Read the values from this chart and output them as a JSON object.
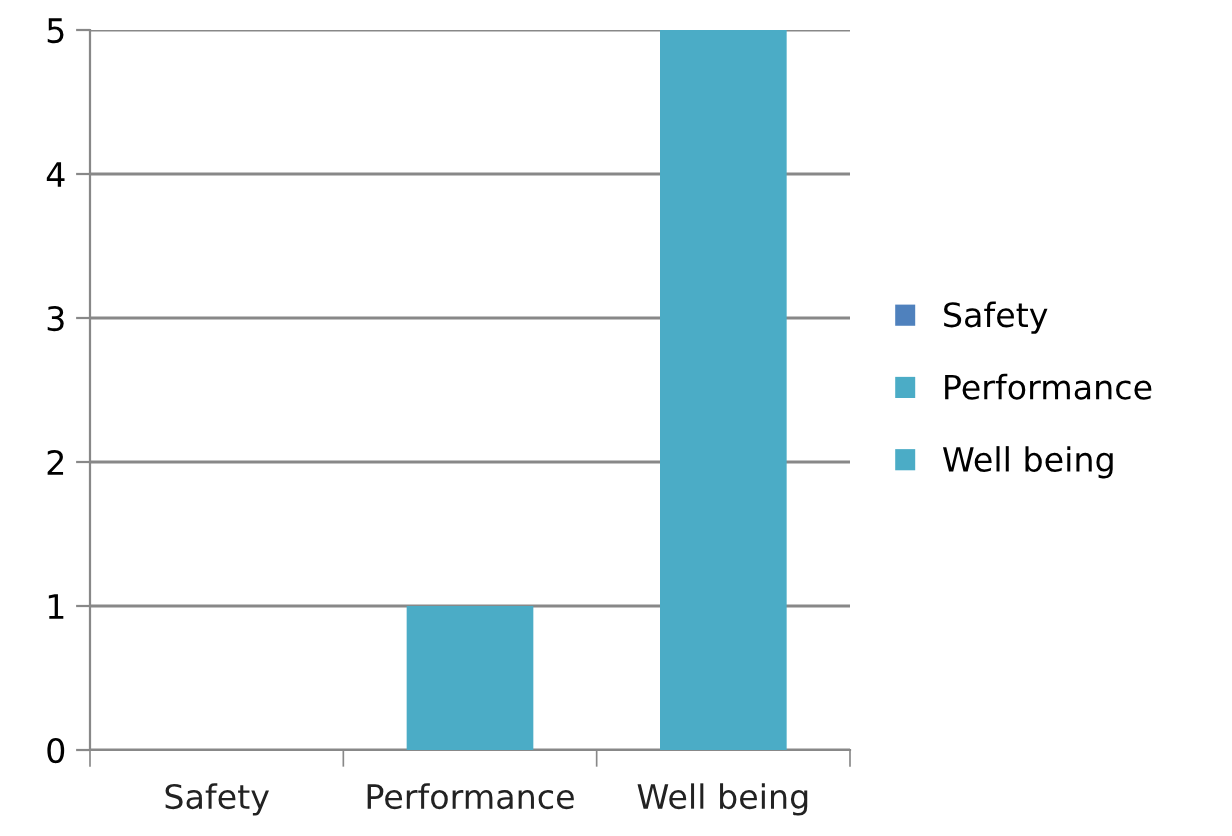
{
  "chart_data": {
    "type": "bar",
    "categories": [
      "Safety",
      "Performance",
      "Well being"
    ],
    "series": [
      {
        "name": "Safety",
        "color": "#4f81bd",
        "values": [
          0,
          null,
          null
        ]
      },
      {
        "name": "Performance",
        "color": "#4bacc6",
        "values": [
          null,
          1,
          null
        ]
      },
      {
        "name": "Well being",
        "color": "#4bacc6",
        "values": [
          null,
          null,
          5
        ]
      }
    ],
    "ylim": [
      0,
      5
    ],
    "yticks": [
      0,
      1,
      2,
      3,
      4,
      5
    ],
    "grid": "y",
    "legend": "right"
  }
}
